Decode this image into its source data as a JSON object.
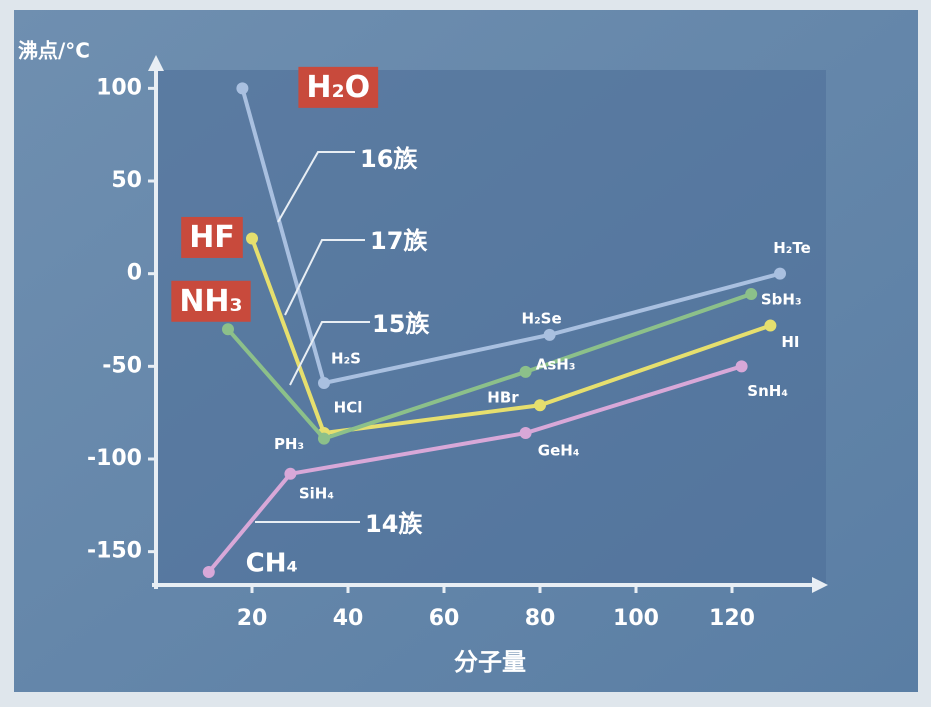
{
  "chart_data": {
    "type": "line",
    "ylabel": "沸点/°C",
    "xlabel": "分子量",
    "xlim": [
      0,
      140
    ],
    "ylim": [
      -168,
      118
    ],
    "xticks": [
      20,
      40,
      60,
      80,
      100,
      120
    ],
    "yticks": [
      100,
      50,
      0,
      -50,
      -100,
      -150
    ],
    "series": [
      {
        "name": "16族",
        "color": "#a9c0e0",
        "x": [
          18,
          35,
          82,
          130
        ],
        "values": [
          100,
          -59,
          -33,
          0
        ],
        "labels": [
          "H₂O",
          "H₂S",
          "H₂Se",
          "H₂Te"
        ]
      },
      {
        "name": "17族",
        "color": "#e6df6e",
        "x": [
          20,
          35,
          80,
          128
        ],
        "values": [
          19,
          -86,
          -71,
          -28
        ],
        "labels": [
          "HF",
          "HCl",
          "HBr",
          "HI"
        ]
      },
      {
        "name": "15族",
        "color": "#8cc08a",
        "x": [
          15,
          35,
          77,
          124
        ],
        "values": [
          -30,
          -89,
          -53,
          -11
        ],
        "labels": [
          "NH₃",
          "PH₃",
          "AsH₃",
          "SbH₃"
        ]
      },
      {
        "name": "14族",
        "color": "#d8a8d8",
        "x": [
          11,
          28,
          77,
          122
        ],
        "values": [
          -161,
          -108,
          -86,
          -50
        ],
        "labels": [
          "CH₄",
          "SiH₄",
          "GeH₄",
          "SnH₄"
        ]
      }
    ]
  }
}
